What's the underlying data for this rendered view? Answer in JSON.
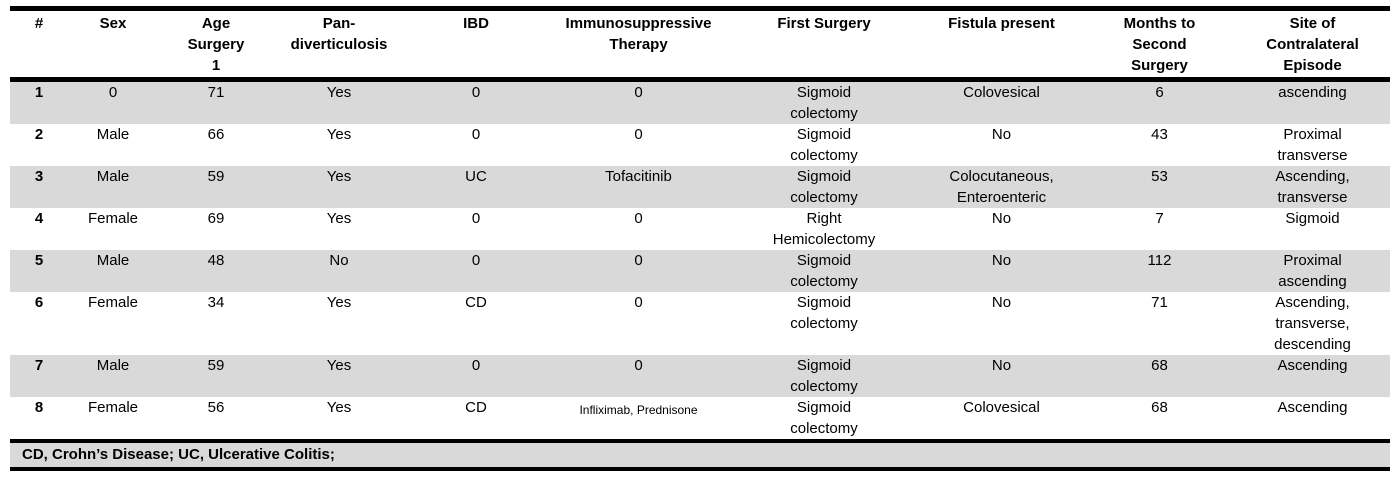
{
  "table": {
    "columns": [
      {
        "label": "#"
      },
      {
        "label": "Sex"
      },
      {
        "label": "Age\nSurgery\n1"
      },
      {
        "label": "Pan-\ndiverticulosis"
      },
      {
        "label": "IBD"
      },
      {
        "label": "Immunosuppressive\nTherapy"
      },
      {
        "label": "First Surgery"
      },
      {
        "label": "Fistula present"
      },
      {
        "label": "Months to\nSecond\nSurgery"
      },
      {
        "label": "Site of\nContralateral\nEpisode"
      }
    ],
    "rows": [
      {
        "cells": [
          "1",
          "0",
          "71",
          "Yes",
          "0",
          "0",
          "Sigmoid\ncolectomy",
          "Colovesical",
          "6",
          "ascending"
        ]
      },
      {
        "cells": [
          "2",
          "Male",
          "66",
          "Yes",
          "0",
          "0",
          "Sigmoid\ncolectomy",
          "No",
          "43",
          "Proximal\ntransverse"
        ]
      },
      {
        "cells": [
          "3",
          "Male",
          "59",
          "Yes",
          "UC",
          "Tofacitinib",
          "Sigmoid\ncolectomy",
          "Colocutaneous,\nEnteroenteric",
          "53",
          "Ascending,\ntransverse"
        ]
      },
      {
        "cells": [
          "4",
          "Female",
          "69",
          "Yes",
          "0",
          "0",
          "Right\nHemicolectomy",
          "No",
          "7",
          "Sigmoid"
        ]
      },
      {
        "cells": [
          "5",
          "Male",
          "48",
          "No",
          "0",
          "0",
          "Sigmoid\ncolectomy",
          "No",
          "112",
          "Proximal\nascending"
        ]
      },
      {
        "cells": [
          "6",
          "Female",
          "34",
          "Yes",
          "CD",
          "0",
          "Sigmoid\ncolectomy",
          "No",
          "71",
          "Ascending,\ntransverse,\ndescending"
        ]
      },
      {
        "cells": [
          "7",
          "Male",
          "59",
          "Yes",
          "0",
          "0",
          "Sigmoid\ncolectomy",
          "No",
          "68",
          "Ascending"
        ]
      },
      {
        "cells": [
          "8",
          "Female",
          "56",
          "Yes",
          "CD",
          "Infliximab, Prednisone",
          "Sigmoid\ncolectomy",
          "Colovesical",
          "68",
          "Ascending"
        ]
      }
    ],
    "footnote": "CD, Crohn’s Disease; UC, Ulcerative Colitis;"
  },
  "colors": {
    "row_shade": "#d9d9d9",
    "rule": "#000000",
    "text": "#000000"
  }
}
